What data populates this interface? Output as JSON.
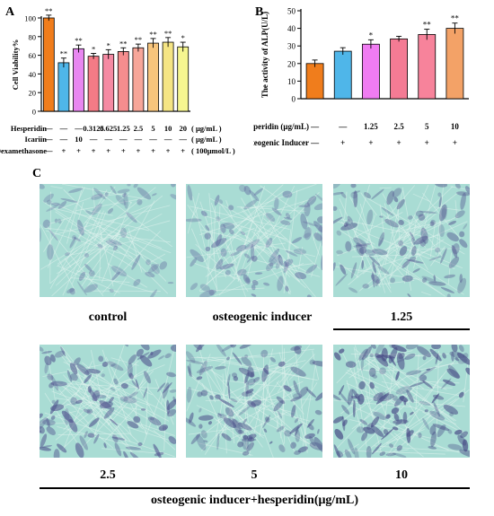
{
  "panels": {
    "a": "A",
    "b": "B",
    "c": "C"
  },
  "chart_data": [
    {
      "type": "bar",
      "panel": "A",
      "ylabel": "Cell Viability%",
      "ylim": [
        0,
        100
      ],
      "yticks": [
        0,
        20,
        40,
        60,
        80,
        100
      ],
      "values": [
        100,
        52,
        67,
        59,
        61,
        64,
        68,
        73,
        74,
        69
      ],
      "errors": [
        3,
        5,
        4,
        3,
        5,
        4,
        4,
        5,
        5,
        5
      ],
      "stars": [
        "**",
        "**",
        "**",
        "*",
        "*",
        "**",
        "**",
        "**",
        "**",
        "*"
      ],
      "colors": [
        "#f07d1c",
        "#4fb6e9",
        "#e887f0",
        "#f47b86",
        "#f58aa3",
        "#f58d8e",
        "#f7a699",
        "#f7c57c",
        "#f5e584",
        "#f6f690"
      ],
      "condition_rows": [
        {
          "label": "Hesperidin",
          "values": [
            "—",
            "—",
            "—",
            "0.3125",
            "0.625",
            "1.25",
            "2.5",
            "5",
            "10",
            "20"
          ],
          "unit": "( μg/mL )"
        },
        {
          "label": "Icariin",
          "values": [
            "—",
            "—",
            "10",
            "—",
            "—",
            "—",
            "—",
            "—",
            "—",
            "—"
          ],
          "unit": "( μg/mL )"
        },
        {
          "label": "Dexamethasone",
          "values": [
            "—",
            "+",
            "+",
            "+",
            "+",
            "+",
            "+",
            "+",
            "+",
            "+"
          ],
          "unit": "( 100μmol/L )"
        }
      ]
    },
    {
      "type": "bar",
      "panel": "B",
      "ylabel": "The activity of ALP(U/L)",
      "ylim": [
        0,
        50
      ],
      "yticks": [
        0,
        10,
        20,
        30,
        40,
        50
      ],
      "values": [
        20,
        27,
        31,
        34,
        36.5,
        40
      ],
      "errors": [
        2,
        2,
        2.5,
        1.5,
        3,
        3
      ],
      "stars": [
        "",
        "",
        "*",
        "",
        "**",
        "**"
      ],
      "colors": [
        "#f07d1c",
        "#4fb6e9",
        "#f07cf2",
        "#f47b94",
        "#f7839b",
        "#f3a267"
      ],
      "condition_rows": [
        {
          "label": "Hesperidin (μg/mL)",
          "values": [
            "—",
            "—",
            "1.25",
            "2.5",
            "5",
            "10"
          ]
        },
        {
          "label": "Osteogenic Inducer",
          "values": [
            "—",
            "+",
            "+",
            "+",
            "+",
            "+"
          ]
        }
      ]
    }
  ],
  "micrographs": [
    {
      "caption": "control",
      "density": 0.25,
      "shade": "#5a5c99"
    },
    {
      "caption": "osteogenic inducer",
      "density": 0.45,
      "shade": "#5a5c99"
    },
    {
      "caption": "1.25",
      "density": 0.6,
      "shade": "#53568f"
    },
    {
      "caption": "2.5",
      "density": 0.7,
      "shade": "#4e4f8c"
    },
    {
      "caption": "5",
      "density": 0.72,
      "shade": "#4a4c88"
    },
    {
      "caption": "10",
      "density": 0.9,
      "shade": "#474a85"
    }
  ],
  "footer_label": "osteogenic inducer+hesperidin(μg/mL)"
}
